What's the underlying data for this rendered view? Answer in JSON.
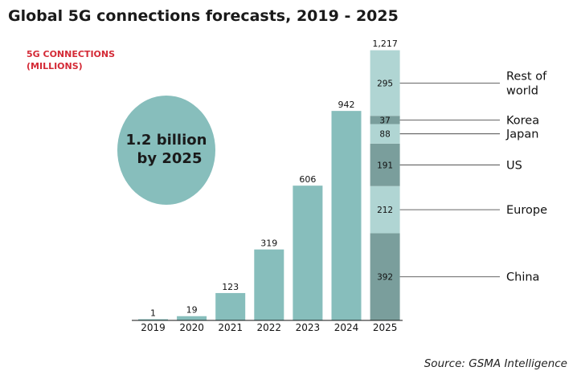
{
  "chart_data": {
    "type": "bar",
    "title": "Global 5G connections forecasts, 2019 - 2025",
    "ylabel_lines": [
      "5G CONNECTIONS",
      "(MILLIONS)"
    ],
    "categories": [
      "2019",
      "2020",
      "2021",
      "2022",
      "2023",
      "2024",
      "2025"
    ],
    "values": [
      1,
      19,
      123,
      319,
      606,
      942,
      1217
    ],
    "value_labels": [
      "1",
      "19",
      "123",
      "319",
      "606",
      "942",
      "1,217"
    ],
    "ylim": [
      0,
      1217
    ],
    "grid": false,
    "legend": "none",
    "breakdown": {
      "category": "2025",
      "segments": [
        {
          "name": "China",
          "value": 392,
          "label": "392",
          "color": "#7a9e9c",
          "label_lines": [
            "China"
          ]
        },
        {
          "name": "Europe",
          "value": 212,
          "label": "212",
          "color": "#b0d5d3",
          "label_lines": [
            "Europe"
          ]
        },
        {
          "name": "US",
          "value": 191,
          "label": "191",
          "color": "#7a9e9c",
          "label_lines": [
            "US"
          ]
        },
        {
          "name": "Japan",
          "value": 88,
          "label": "88",
          "color": "#b0d5d3",
          "label_lines": [
            "Japan"
          ]
        },
        {
          "name": "Korea",
          "value": 37,
          "label": "37",
          "color": "#7a9e9c",
          "label_lines": [
            "Korea"
          ]
        },
        {
          "name": "Rest of world",
          "value": 295,
          "label": "295",
          "color": "#b0d5d3",
          "label_lines": [
            "Rest of",
            "world"
          ]
        }
      ]
    },
    "annotation": {
      "lines": [
        "1.2 billion",
        "by 2025"
      ]
    },
    "source": "Source: GSMA Intelligence",
    "colors": {
      "bar": "#87bebc",
      "badge": "#87bebc",
      "accent": "#d42a36"
    }
  }
}
